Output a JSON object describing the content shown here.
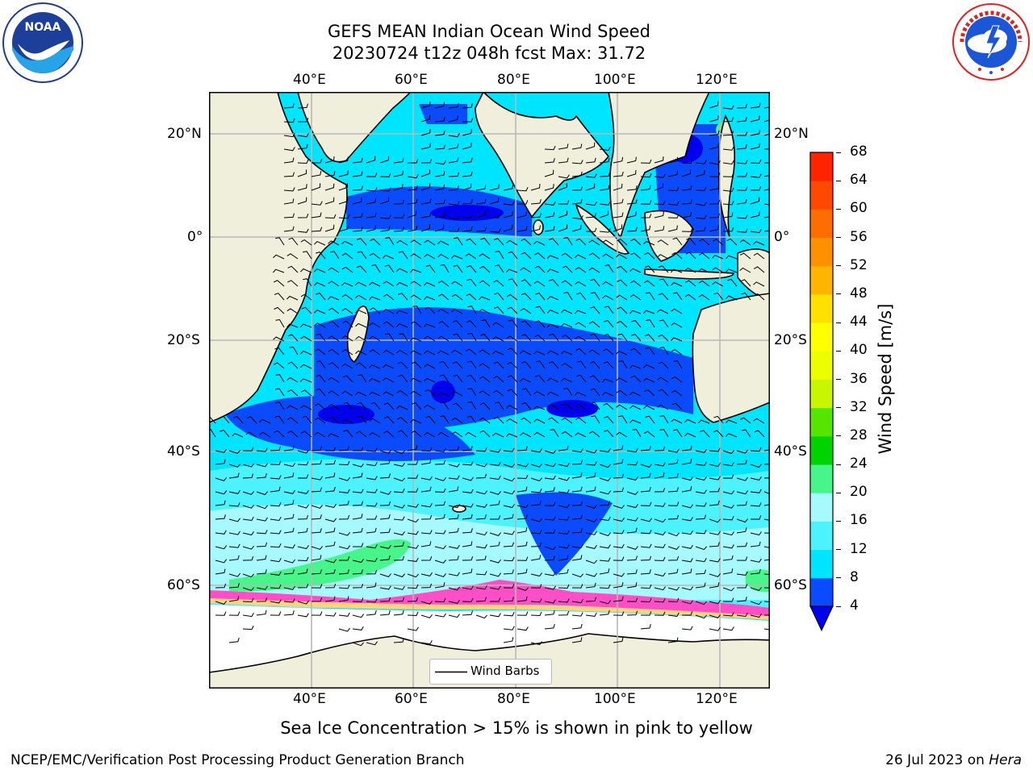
{
  "header": {
    "title_line1": "GEFS MEAN Indian Ocean Wind Speed",
    "title_line2": "20230724 t12z 048h fcst   Max: 31.72"
  },
  "map": {
    "lon_ticks_top": [
      "40°E",
      "60°E",
      "80°E",
      "100°E",
      "120°E"
    ],
    "lon_ticks_bottom": [
      "40°E",
      "60°E",
      "80°E",
      "100°E",
      "120°E"
    ],
    "lat_ticks_left": [
      "20°N",
      "0°",
      "20°S",
      "40°S",
      "60°S"
    ],
    "lat_ticks_right": [
      "20°N",
      "0°",
      "20°S",
      "40°S",
      "60°S"
    ],
    "legend_label": "Wind Barbs",
    "colors": {
      "land": "#efefdc",
      "grid": "#b8b8b8"
    }
  },
  "colorbar": {
    "label": "Wind Speed [m/s]",
    "ticks": [
      "4",
      "8",
      "12",
      "16",
      "20",
      "24",
      "28",
      "32",
      "36",
      "40",
      "44",
      "48",
      "52",
      "56",
      "60",
      "64",
      "68"
    ],
    "colors": [
      "#0a4bff",
      "#00e5ff",
      "#4df2ff",
      "#a6faff",
      "#48f58a",
      "#00d400",
      "#55e500",
      "#c8f500",
      "#ecff00",
      "#ffff00",
      "#ffe000",
      "#ffb400",
      "#ff9000",
      "#ff6c00",
      "#ff4800",
      "#ff2400",
      "#ff0000"
    ],
    "under_color": "#0000ee"
  },
  "caption": "Sea Ice Concentration > 15% is shown in pink to yellow",
  "footer": {
    "left": "NCEP/EMC/Verification Post Processing Product Generation Branch",
    "right_date": "26 Jul 2023 on ",
    "right_machine": "Hera"
  },
  "logos": {
    "noaa_text": "NOAA"
  }
}
